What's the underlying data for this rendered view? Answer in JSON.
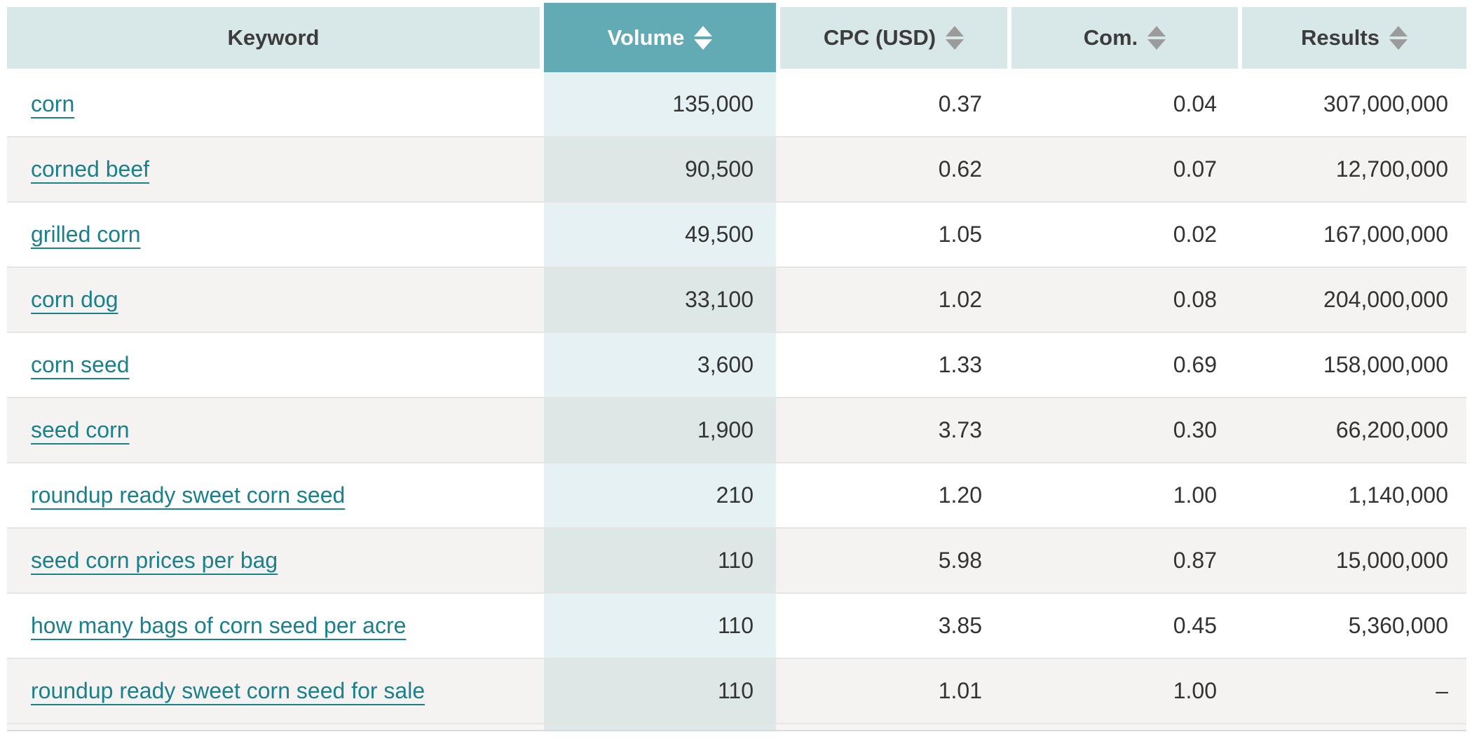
{
  "table": {
    "columns": {
      "keyword": {
        "label": "Keyword",
        "sortable": false
      },
      "volume": {
        "label": "Volume",
        "sortable": true,
        "active_sort": true
      },
      "cpc": {
        "label": "CPC (USD)",
        "sortable": true
      },
      "com": {
        "label": "Com.",
        "sortable": true
      },
      "results": {
        "label": "Results",
        "sortable": true
      }
    },
    "rows": [
      {
        "keyword": "corn",
        "volume": "135,000",
        "cpc": "0.37",
        "com": "0.04",
        "results": "307,000,000"
      },
      {
        "keyword": "corned beef",
        "volume": "90,500",
        "cpc": "0.62",
        "com": "0.07",
        "results": "12,700,000"
      },
      {
        "keyword": "grilled corn",
        "volume": "49,500",
        "cpc": "1.05",
        "com": "0.02",
        "results": "167,000,000"
      },
      {
        "keyword": "corn dog",
        "volume": "33,100",
        "cpc": "1.02",
        "com": "0.08",
        "results": "204,000,000"
      },
      {
        "keyword": "corn seed",
        "volume": "3,600",
        "cpc": "1.33",
        "com": "0.69",
        "results": "158,000,000"
      },
      {
        "keyword": "seed corn",
        "volume": "1,900",
        "cpc": "3.73",
        "com": "0.30",
        "results": "66,200,000"
      },
      {
        "keyword": "roundup ready sweet corn seed",
        "volume": "210",
        "cpc": "1.20",
        "com": "1.00",
        "results": "1,140,000"
      },
      {
        "keyword": "seed corn prices per bag",
        "volume": "110",
        "cpc": "5.98",
        "com": "0.87",
        "results": "15,000,000"
      },
      {
        "keyword": "how many bags of corn seed per acre",
        "volume": "110",
        "cpc": "3.85",
        "com": "0.45",
        "results": "5,360,000"
      },
      {
        "keyword": "roundup ready sweet corn seed for sale",
        "volume": "110",
        "cpc": "1.01",
        "com": "1.00",
        "results": "–"
      }
    ]
  },
  "colors": {
    "header_light_bg": "#d8e8e9",
    "header_active_bg": "#63abb4",
    "header_text": "#3c3c3c",
    "sort_arrow_gray": "#9b9b9b",
    "link_teal": "#19808c",
    "row_alt_bg": "#f4f3f1",
    "volume_column_tint": "rgba(99,171,180,0.17)",
    "body_text": "#333333"
  }
}
